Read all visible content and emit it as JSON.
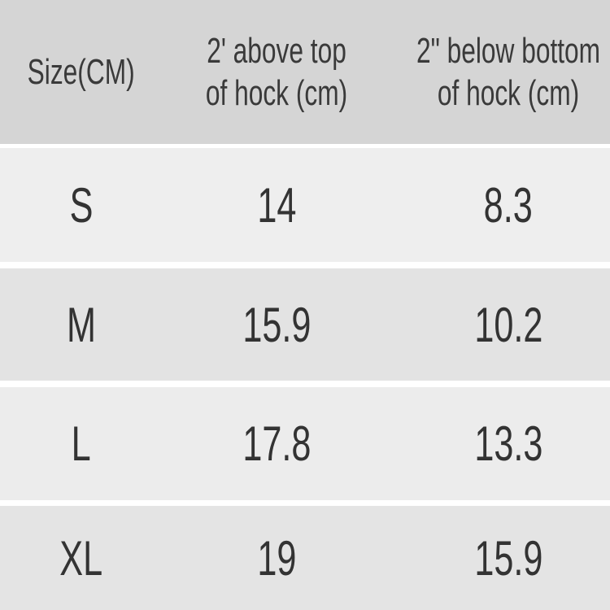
{
  "table": {
    "headers": [
      "Size(CM)",
      "2' above top of hock (cm)",
      "2\" below bottom of hock (cm)"
    ],
    "header_lines": [
      [
        "Size(CM)"
      ],
      [
        "2' above top",
        "of hock (cm)"
      ],
      [
        "2\" below bottom",
        "of hock (cm)"
      ]
    ],
    "rows": [
      [
        "S",
        "14",
        "8.3"
      ],
      [
        "M",
        "15.9",
        "10.2"
      ],
      [
        "L",
        "17.8",
        "13.3"
      ],
      [
        "XL",
        "19",
        "15.9"
      ]
    ]
  },
  "colors": {
    "header_bg": "#d5d5d5",
    "row_bg": "#eeeeee",
    "text": "#333333"
  }
}
